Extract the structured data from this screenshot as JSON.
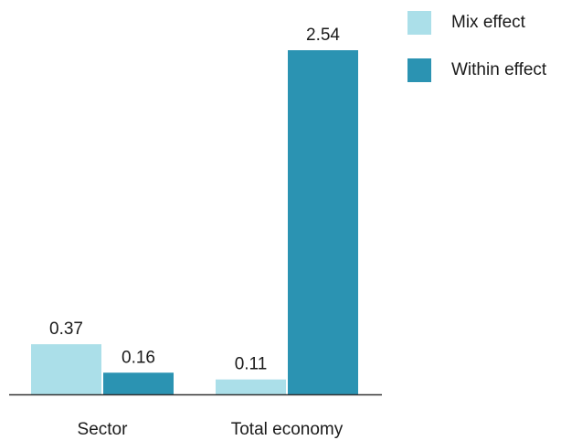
{
  "chart_data": {
    "type": "bar",
    "categories": [
      "Sector",
      "Total economy"
    ],
    "series": [
      {
        "name": "Mix effect",
        "values": [
          0.37,
          0.11
        ],
        "color": "#abdfe9"
      },
      {
        "name": "Within effect",
        "values": [
          0.16,
          2.54
        ],
        "color": "#2b93b2"
      }
    ],
    "data_labels": [
      [
        "0.37",
        "0.11"
      ],
      [
        "0.16",
        "2.54"
      ]
    ],
    "ylim": [
      0,
      2.54
    ],
    "grid": false,
    "legend_position": "top-right"
  }
}
